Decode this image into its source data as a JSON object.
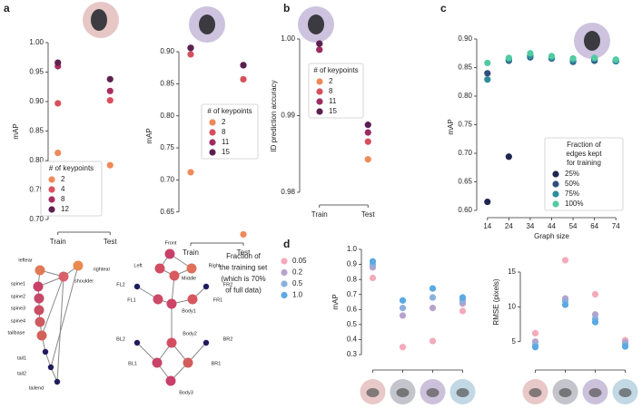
{
  "panel_labels": [
    "a",
    "b",
    "c",
    "d"
  ],
  "chart_data": [
    {
      "type": "strip",
      "ylabel": "mAP",
      "categories": [
        "Train",
        "Test"
      ],
      "ylim": [
        0.7,
        1.0
      ],
      "yticks": [
        {
          "value": 0.7,
          "label": "0.70"
        },
        0.75,
        {
          "value": 0.8,
          "label": "0.80"
        },
        0.85,
        {
          "value": 0.9,
          "label": "0.90"
        },
        0.95,
        {
          "value": 1.0,
          "label": "1.00"
        }
      ],
      "legend_title": [
        "# of keypoints"
      ],
      "series": [
        {
          "name": "2",
          "color": "#ee8a5a",
          "values": [
            0.813,
            0.792
          ]
        },
        {
          "name": "4",
          "color": "#d9505e",
          "values": [
            0.897,
            0.902
          ]
        },
        {
          "name": "8",
          "color": "#a82e60",
          "values": [
            0.96,
            0.918
          ]
        },
        {
          "name": "12",
          "color": "#5e2251",
          "values": [
            0.966,
            0.938
          ]
        }
      ]
    },
    {
      "type": "strip",
      "ylabel": "mAP",
      "categories": [
        "Train",
        "Test"
      ],
      "ylim": [
        0.61,
        0.91
      ],
      "yticks": [
        0.65,
        {
          "value": 0.7,
          "label": "0.70"
        },
        0.75,
        {
          "value": 0.8,
          "label": "0.80"
        },
        0.85,
        {
          "value": 0.9,
          "label": "0.90"
        }
      ],
      "legend_title": [
        "# of keypoints"
      ],
      "series": [
        {
          "name": "2",
          "color": "#ee8a5a",
          "values": [
            0.712,
            0.615
          ]
        },
        {
          "name": "8",
          "color": "#d4505e",
          "values": [
            0.896,
            0.857
          ]
        },
        {
          "name": "11",
          "color": "#9c2d62",
          "values": [
            0.906,
            0.879
          ]
        },
        {
          "name": "15",
          "color": "#5a2050",
          "values": [
            0.906,
            0.879
          ]
        }
      ]
    },
    {
      "type": "strip",
      "ylabel": "ID prediction accuracy",
      "categories": [
        "Train",
        "Test"
      ],
      "ylim": [
        0.98,
        1.0
      ],
      "yticks": [
        0.98,
        0.99,
        {
          "value": 1.0,
          "label": "1.00"
        }
      ],
      "legend_title": [
        "# of keypoints"
      ],
      "series": [
        {
          "name": "2",
          "color": "#ee8a5a",
          "values": [
            0.9986,
            0.9843
          ]
        },
        {
          "name": "8",
          "color": "#d4505e",
          "values": [
            0.9994,
            0.9866
          ]
        },
        {
          "name": "11",
          "color": "#9c2d62",
          "values": [
            0.9986,
            0.9878
          ]
        },
        {
          "name": "15",
          "color": "#5a2050",
          "values": [
            0.9994,
            0.9888
          ]
        }
      ]
    },
    {
      "type": "scatter",
      "ylabel": "mAP",
      "xlabel": "Graph size",
      "x": [
        14,
        24,
        34,
        44,
        54,
        64,
        74
      ],
      "xlim": [
        9,
        79
      ],
      "xticks": [
        14,
        24,
        34,
        44,
        54,
        64,
        74
      ],
      "ylim": [
        0.6,
        0.9
      ],
      "yticks": [
        {
          "value": 0.6,
          "label": "0.60"
        },
        0.65,
        {
          "value": 0.7,
          "label": "0.70"
        },
        0.75,
        {
          "value": 0.8,
          "label": "0.80"
        },
        0.85,
        {
          "value": 0.9,
          "label": "0.90"
        }
      ],
      "legend_title": [
        "Fraction of",
        "edges kept",
        "for training"
      ],
      "series": [
        {
          "name": "25%",
          "color": "#1f2750",
          "values": [
            0.615,
            0.694,
            0.87,
            0.866,
            0.862,
            0.864,
            0.862
          ]
        },
        {
          "name": "50%",
          "color": "#2e4f7e",
          "values": [
            0.84,
            0.862,
            0.868,
            0.866,
            0.86,
            0.862,
            0.861
          ]
        },
        {
          "name": "75%",
          "color": "#2d8d9c",
          "values": [
            0.829,
            0.864,
            0.87,
            0.867,
            0.862,
            0.865,
            0.861
          ]
        },
        {
          "name": "100%",
          "color": "#52cba2",
          "values": [
            0.858,
            0.867,
            0.875,
            0.87,
            0.866,
            0.867,
            0.864
          ]
        }
      ]
    },
    {
      "type": "strip",
      "ylabel": "mAP",
      "categories": [
        null,
        null,
        null,
        null
      ],
      "ylim": [
        0.3,
        1.0
      ],
      "yticks": [
        0.3,
        0.4,
        0.5,
        0.6,
        0.7,
        0.8,
        0.9,
        {
          "value": 1.0,
          "label": "1.0"
        }
      ],
      "legend_title": [
        "Fraction of",
        "the training set",
        "(which is 70%",
        "of full data)"
      ],
      "series": [
        {
          "name": "0.05",
          "color": "#f4aabb",
          "values": [
            0.81,
            0.35,
            0.39,
            0.59
          ]
        },
        {
          "name": "0.2",
          "color": "#b6a3cc",
          "values": [
            0.88,
            0.56,
            0.61,
            0.64
          ]
        },
        {
          "name": "0.5",
          "color": "#8ab0dd",
          "values": [
            0.9,
            0.61,
            0.68,
            0.66
          ]
        },
        {
          "name": "1.0",
          "color": "#5aa9e3",
          "values": [
            0.92,
            0.66,
            0.74,
            0.68
          ]
        }
      ]
    },
    {
      "type": "strip",
      "ylabel": "RMSE (pixels)",
      "categories": [
        null,
        null,
        null,
        null
      ],
      "ylim": [
        3,
        18
      ],
      "yticks": [
        5,
        10,
        15
      ],
      "series": [
        {
          "color": "#f4aabb",
          "values": [
            6.2,
            16.7,
            11.8,
            5.2
          ]
        },
        {
          "color": "#b6a3cc",
          "values": [
            5.0,
            11.2,
            8.9,
            4.9
          ]
        },
        {
          "color": "#8ab0dd",
          "values": [
            4.5,
            10.8,
            8.3,
            4.6
          ]
        },
        {
          "color": "#5aa9e3",
          "values": [
            4.2,
            10.3,
            7.8,
            4.3
          ]
        }
      ]
    }
  ],
  "skeletons": [
    {
      "nodes": [
        "leftear",
        "rightear",
        "shoulder",
        "spine1",
        "spine2",
        "spine3",
        "spine4",
        "tailbase",
        "tail1",
        "tail2",
        "tailend"
      ]
    },
    {
      "nodes": [
        "Front",
        "Left",
        "Right",
        "Middle",
        "FL2",
        "FR2",
        "FL1",
        "FR1",
        "Body1",
        "BL2",
        "Body2",
        "BR2",
        "BL1",
        "BR1",
        "Body3"
      ]
    }
  ]
}
